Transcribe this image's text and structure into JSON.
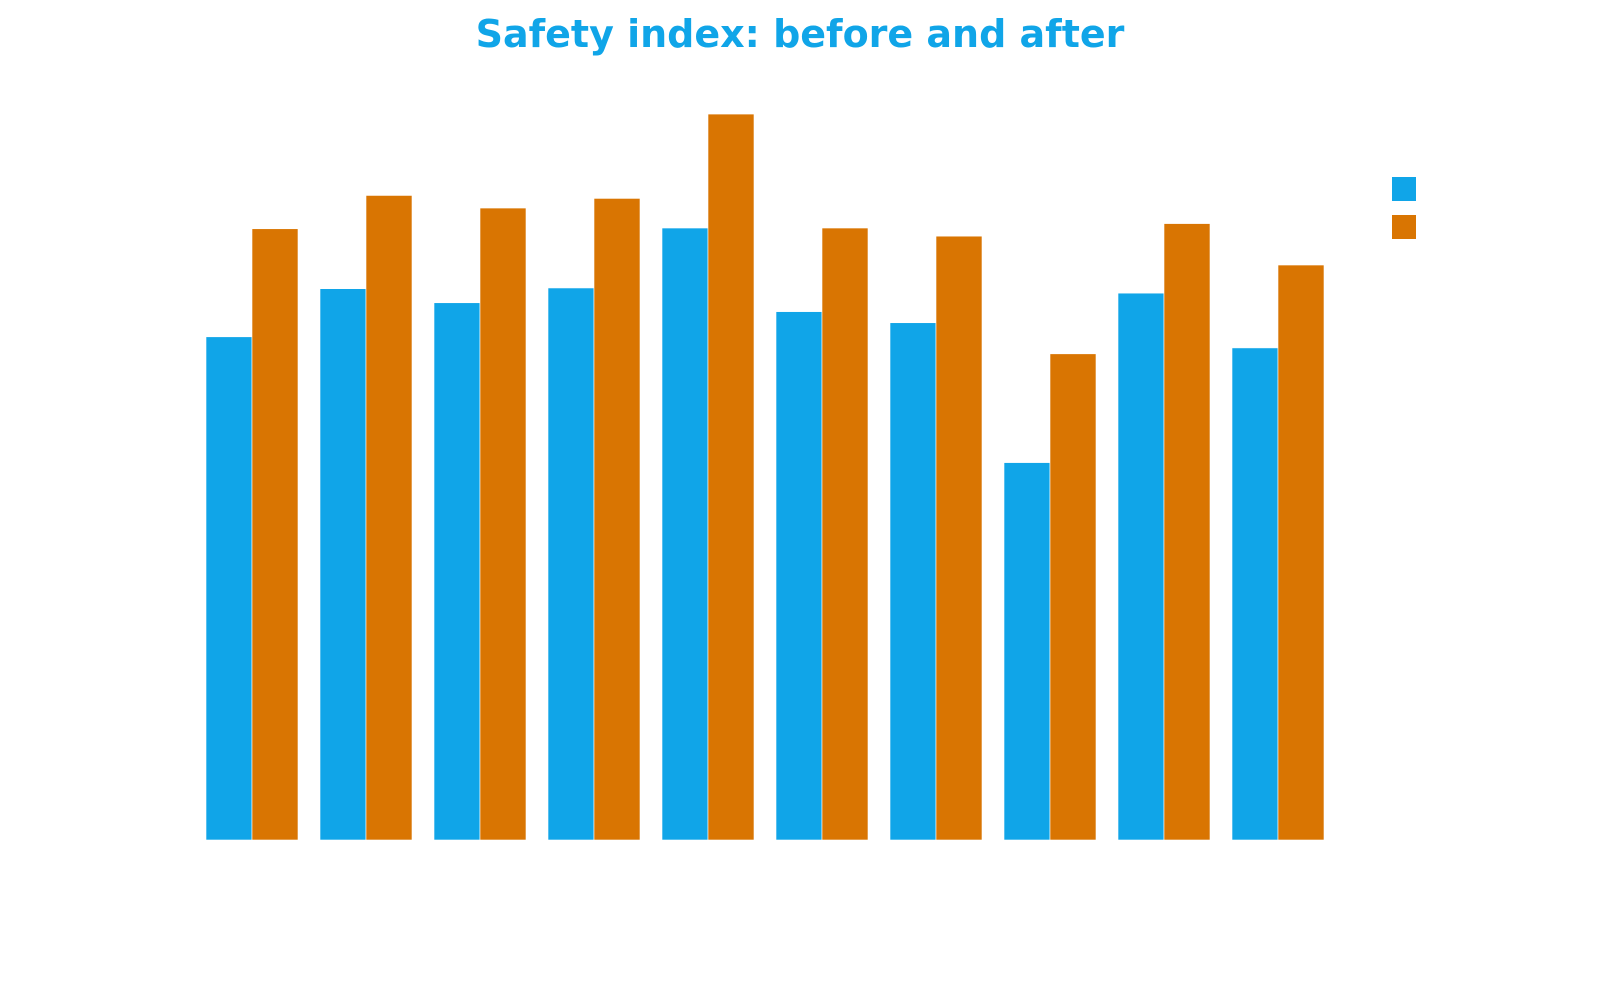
{
  "chart_data": {
    "type": "bar",
    "title": "Safety index: before and after",
    "xlabel": "",
    "ylabel": "",
    "categories": [
      "",
      "",
      "",
      "",
      "",
      "",
      "",
      "",
      "",
      ""
    ],
    "ylim": [
      0,
      100
    ],
    "grid": false,
    "legend_position": "top-right",
    "series": [
      {
        "color": "#10A5E8",
        "values": [
          68,
          74.5,
          72.6,
          74.6,
          82.7,
          71.4,
          69.9,
          51,
          73.9,
          66.5
        ]
      },
      {
        "color": "#D97502",
        "values": [
          82.6,
          87.1,
          85.4,
          86.7,
          98.1,
          82.7,
          81.6,
          65.7,
          83.3,
          77.7
        ]
      }
    ]
  },
  "colors": {
    "title": "#10A5E8"
  }
}
